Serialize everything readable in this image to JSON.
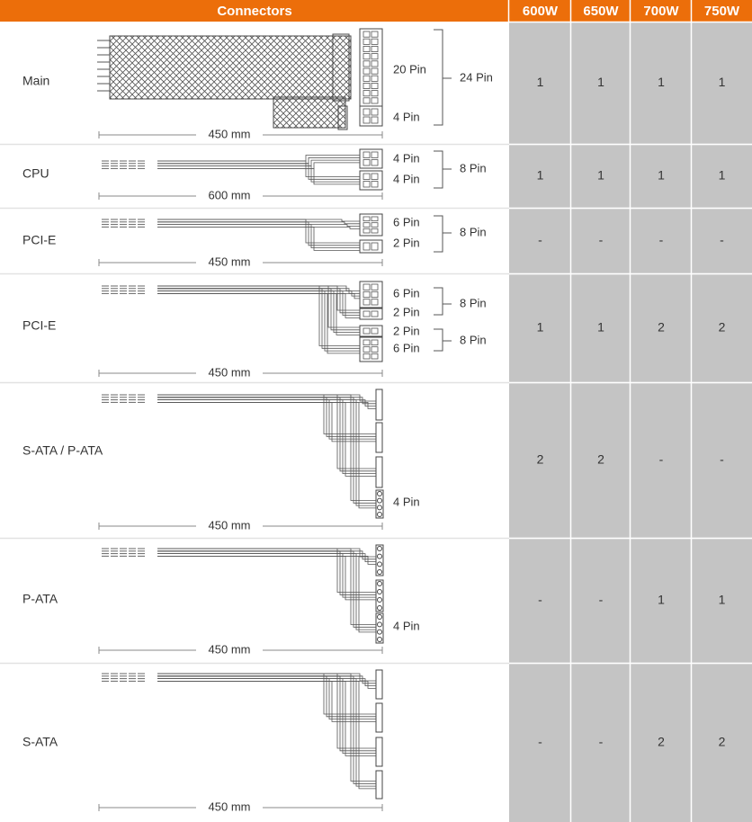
{
  "header": {
    "connectors": "Connectors",
    "columns": [
      "600W",
      "650W",
      "700W",
      "750W"
    ]
  },
  "rows": [
    {
      "name": "Main",
      "length": "450 mm",
      "pins": [
        "20 Pin",
        "4 Pin"
      ],
      "groups": [
        "24 Pin"
      ],
      "values": [
        1,
        1,
        1,
        1
      ]
    },
    {
      "name": "CPU",
      "length": "600 mm",
      "pins": [
        "4 Pin",
        "4 Pin"
      ],
      "groups": [
        "8 Pin"
      ],
      "values": [
        1,
        1,
        1,
        1
      ]
    },
    {
      "name": "PCI-E",
      "length": "450 mm",
      "pins": [
        "6 Pin",
        "2 Pin"
      ],
      "groups": [
        "8 Pin"
      ],
      "values": [
        "-",
        "-",
        "-",
        "-"
      ]
    },
    {
      "name": "PCI-E",
      "length": "450 mm",
      "pins": [
        "6 Pin",
        "2 Pin",
        "2 Pin",
        "6 Pin"
      ],
      "groups": [
        "8 Pin",
        "8 Pin"
      ],
      "values": [
        1,
        1,
        2,
        2
      ]
    },
    {
      "name": "S-ATA / P-ATA",
      "length": "450 mm",
      "pins": [
        "4 Pin"
      ],
      "groups": [],
      "values": [
        2,
        2,
        "-",
        "-"
      ]
    },
    {
      "name": "P-ATA",
      "length": "450 mm",
      "pins": [
        "4 Pin"
      ],
      "groups": [],
      "values": [
        "-",
        "-",
        1,
        1
      ]
    },
    {
      "name": "S-ATA",
      "length": "450 mm",
      "pins": [],
      "groups": [],
      "values": [
        "-",
        "-",
        2,
        2
      ]
    }
  ]
}
